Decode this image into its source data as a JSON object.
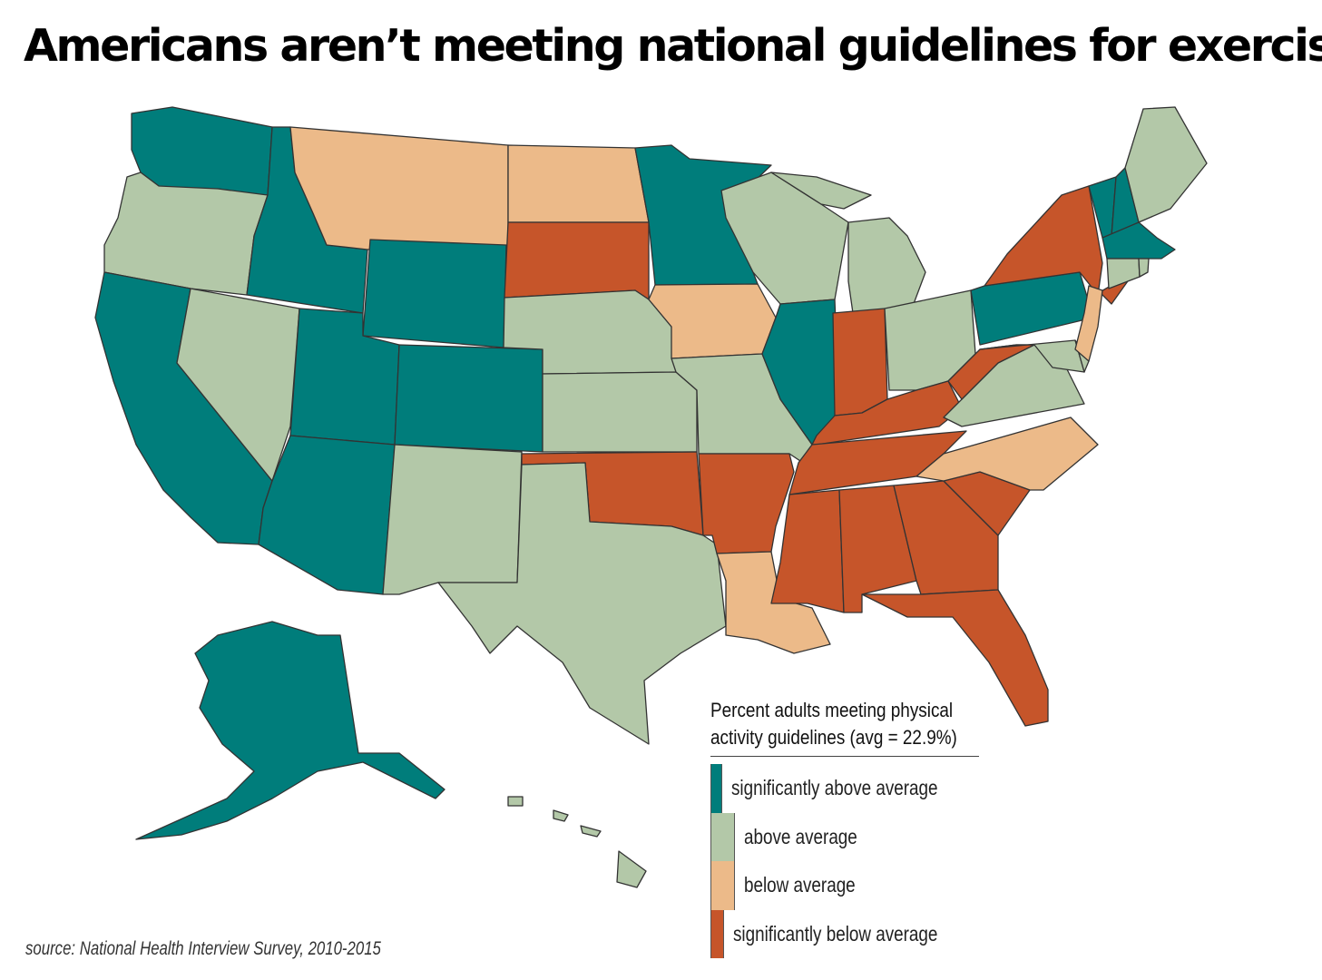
{
  "title": "Americans aren’t meeting national guidelines for exercise",
  "colors": {
    "significantly_above": "#007d7b",
    "above": "#b3c8a8",
    "below": "#ecba89",
    "significantly_below": "#c6552a"
  },
  "legend": {
    "title_line1": "Percent adults meeting physical",
    "title_line2": "activity guidelines (avg = 22.9%)",
    "items": [
      {
        "key": "significantly_above",
        "label": "significantly above average"
      },
      {
        "key": "above",
        "label": "above average"
      },
      {
        "key": "below",
        "label": "below average"
      },
      {
        "key": "significantly_below",
        "label": "significantly below average"
      }
    ]
  },
  "states": {
    "WA": "significantly_above",
    "ID": "significantly_above",
    "WY": "significantly_above",
    "UT": "significantly_above",
    "CO": "significantly_above",
    "AZ": "significantly_above",
    "CA": "significantly_above",
    "MN": "significantly_above",
    "IL": "significantly_above",
    "PA": "significantly_above",
    "VT": "significantly_above",
    "NH": "significantly_above",
    "MA": "significantly_above",
    "AK": "significantly_above",
    "OR": "above",
    "NV": "above",
    "NM": "above",
    "TX": "above",
    "NE": "above",
    "KS": "above",
    "MO": "above",
    "WI": "above",
    "MI": "above",
    "OH": "above",
    "VA": "above",
    "MD": "above",
    "DE": "above",
    "CT": "above",
    "RI": "above",
    "ME": "above",
    "HI": "above",
    "MT": "below",
    "ND": "below",
    "IA": "below",
    "LA": "below",
    "NC": "below",
    "NJ": "below",
    "SD": "significantly_below",
    "OK": "significantly_below",
    "AR": "significantly_below",
    "MS": "significantly_below",
    "AL": "significantly_below",
    "GA": "significantly_below",
    "FL": "significantly_below",
    "SC": "significantly_below",
    "TN": "significantly_below",
    "KY": "significantly_below",
    "IN": "significantly_below",
    "WV": "significantly_below",
    "NY": "significantly_below"
  },
  "source": "source: National Health Interview Survey, 2010-2015"
}
